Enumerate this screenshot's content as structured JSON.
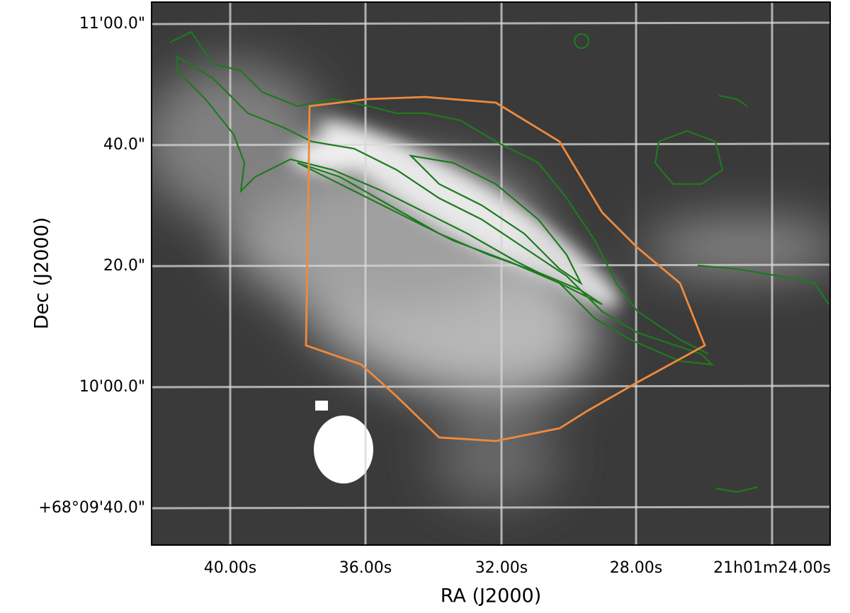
{
  "axes": {
    "x_label": "RA (J2000)",
    "y_label": "Dec (J2000)",
    "x_ticks": [
      "40.00s",
      "36.00s",
      "32.00s",
      "28.00s",
      "21h01m24.00s"
    ],
    "y_ticks": [
      "11'00.0\"",
      "40.0\"",
      "20.0\"",
      "10'00.0\"",
      "+68°09'40.0\""
    ]
  }
}
